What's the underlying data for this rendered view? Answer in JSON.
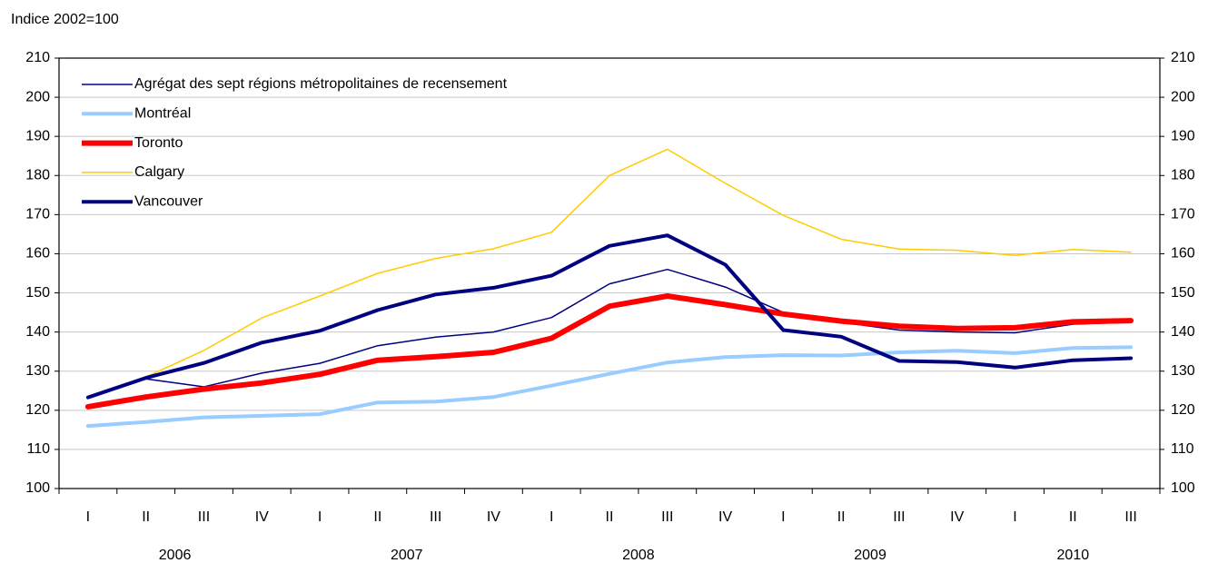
{
  "chart_data": {
    "type": "line",
    "y_label": "Indice 2002=100",
    "categories": [
      "I",
      "II",
      "III",
      "IV",
      "I",
      "II",
      "III",
      "IV",
      "I",
      "II",
      "III",
      "IV",
      "I",
      "II",
      "III",
      "IV",
      "I",
      "II",
      "III"
    ],
    "year_labels": [
      "2006",
      "2007",
      "2008",
      "2009",
      "2010"
    ],
    "ylim": [
      100,
      210
    ],
    "yticks": [
      100,
      110,
      120,
      130,
      140,
      150,
      160,
      170,
      180,
      190,
      200,
      210
    ],
    "y2lim": [
      100,
      210
    ],
    "y2ticks": [
      100,
      110,
      120,
      130,
      140,
      150,
      160,
      170,
      180,
      190,
      200,
      210
    ],
    "grid": true,
    "legend": "upper-left",
    "series": [
      {
        "name": "Agrégat des sept régions métropolitaines de recensement",
        "color": "#000080",
        "width": 1.5,
        "values": [
          123,
          128,
          126,
          129.5,
          132,
          136.5,
          138.7,
          140,
          143.7,
          152.3,
          156,
          151.5,
          145,
          142.5,
          140.5,
          140,
          139.8,
          142,
          142.5
        ]
      },
      {
        "name": "Montréal",
        "color": "#99ccff",
        "width": 4,
        "values": [
          116,
          117,
          118.2,
          118.6,
          119,
          122,
          122.2,
          123.4,
          126.3,
          129.3,
          132.2,
          133.6,
          134.1,
          134,
          134.8,
          135.2,
          134.6,
          135.9,
          136.1
        ]
      },
      {
        "name": "Toronto",
        "color": "#ff0000",
        "width": 6,
        "values": [
          120.9,
          123.4,
          125.4,
          127,
          129.2,
          132.8,
          133.7,
          134.8,
          138.4,
          146.6,
          149.2,
          147,
          144.6,
          142.8,
          141.5,
          140.9,
          141.1,
          142.6,
          142.9
        ]
      },
      {
        "name": "Calgary",
        "color": "#ffcc00",
        "width": 1.5,
        "values": [
          123,
          128.5,
          135.3,
          143.6,
          149.2,
          155,
          158.8,
          161.3,
          165.5,
          180,
          186.7,
          178,
          169.8,
          163.7,
          161.2,
          160.9,
          159.6,
          161.1,
          160.4
        ]
      },
      {
        "name": "Vancouver",
        "color": "#000080",
        "width": 4,
        "values": [
          123.3,
          128.3,
          132.1,
          137.3,
          140.3,
          145.6,
          149.6,
          151.3,
          154.4,
          162,
          164.7,
          157.2,
          140.5,
          138.8,
          132.6,
          132.3,
          130.9,
          132.8,
          133.3
        ]
      }
    ]
  }
}
